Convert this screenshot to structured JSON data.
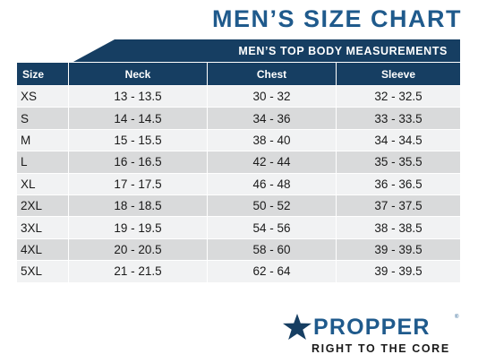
{
  "header": {
    "title": "MEN’S SIZE CHART",
    "banner": "MEN’S TOP BODY MEASUREMENTS"
  },
  "table": {
    "columns": [
      "Size",
      "Neck",
      "Chest",
      "Sleeve"
    ],
    "rows": [
      [
        "XS",
        "13 - 13.5",
        "30 - 32",
        "32 - 32.5"
      ],
      [
        "S",
        "14 - 14.5",
        "34 - 36",
        "33 - 33.5"
      ],
      [
        "M",
        "15 - 15.5",
        "38 - 40",
        "34 - 34.5"
      ],
      [
        "L",
        "16 - 16.5",
        "42 - 44",
        "35 - 35.5"
      ],
      [
        "XL",
        "17 - 17.5",
        "46 - 48",
        "36 - 36.5"
      ],
      [
        "2XL",
        "18 - 18.5",
        "50 - 52",
        "37 - 37.5"
      ],
      [
        "3XL",
        "19 - 19.5",
        "54 - 56",
        "38 - 38.5"
      ],
      [
        "4XL",
        "20 - 20.5",
        "58 - 60",
        "39 - 39.5"
      ],
      [
        "5XL",
        "21 - 21.5",
        "62 - 64",
        "39 - 39.5"
      ]
    ]
  },
  "brand": {
    "name": "PROPPER",
    "registered": "®",
    "tagline": "RIGHT TO THE CORE",
    "logo_icon": "star-icon"
  },
  "colors": {
    "title_blue": "#1f5a8c",
    "header_navy": "#163e62",
    "row_light": "#f1f2f3",
    "row_dark": "#d9dadb"
  }
}
